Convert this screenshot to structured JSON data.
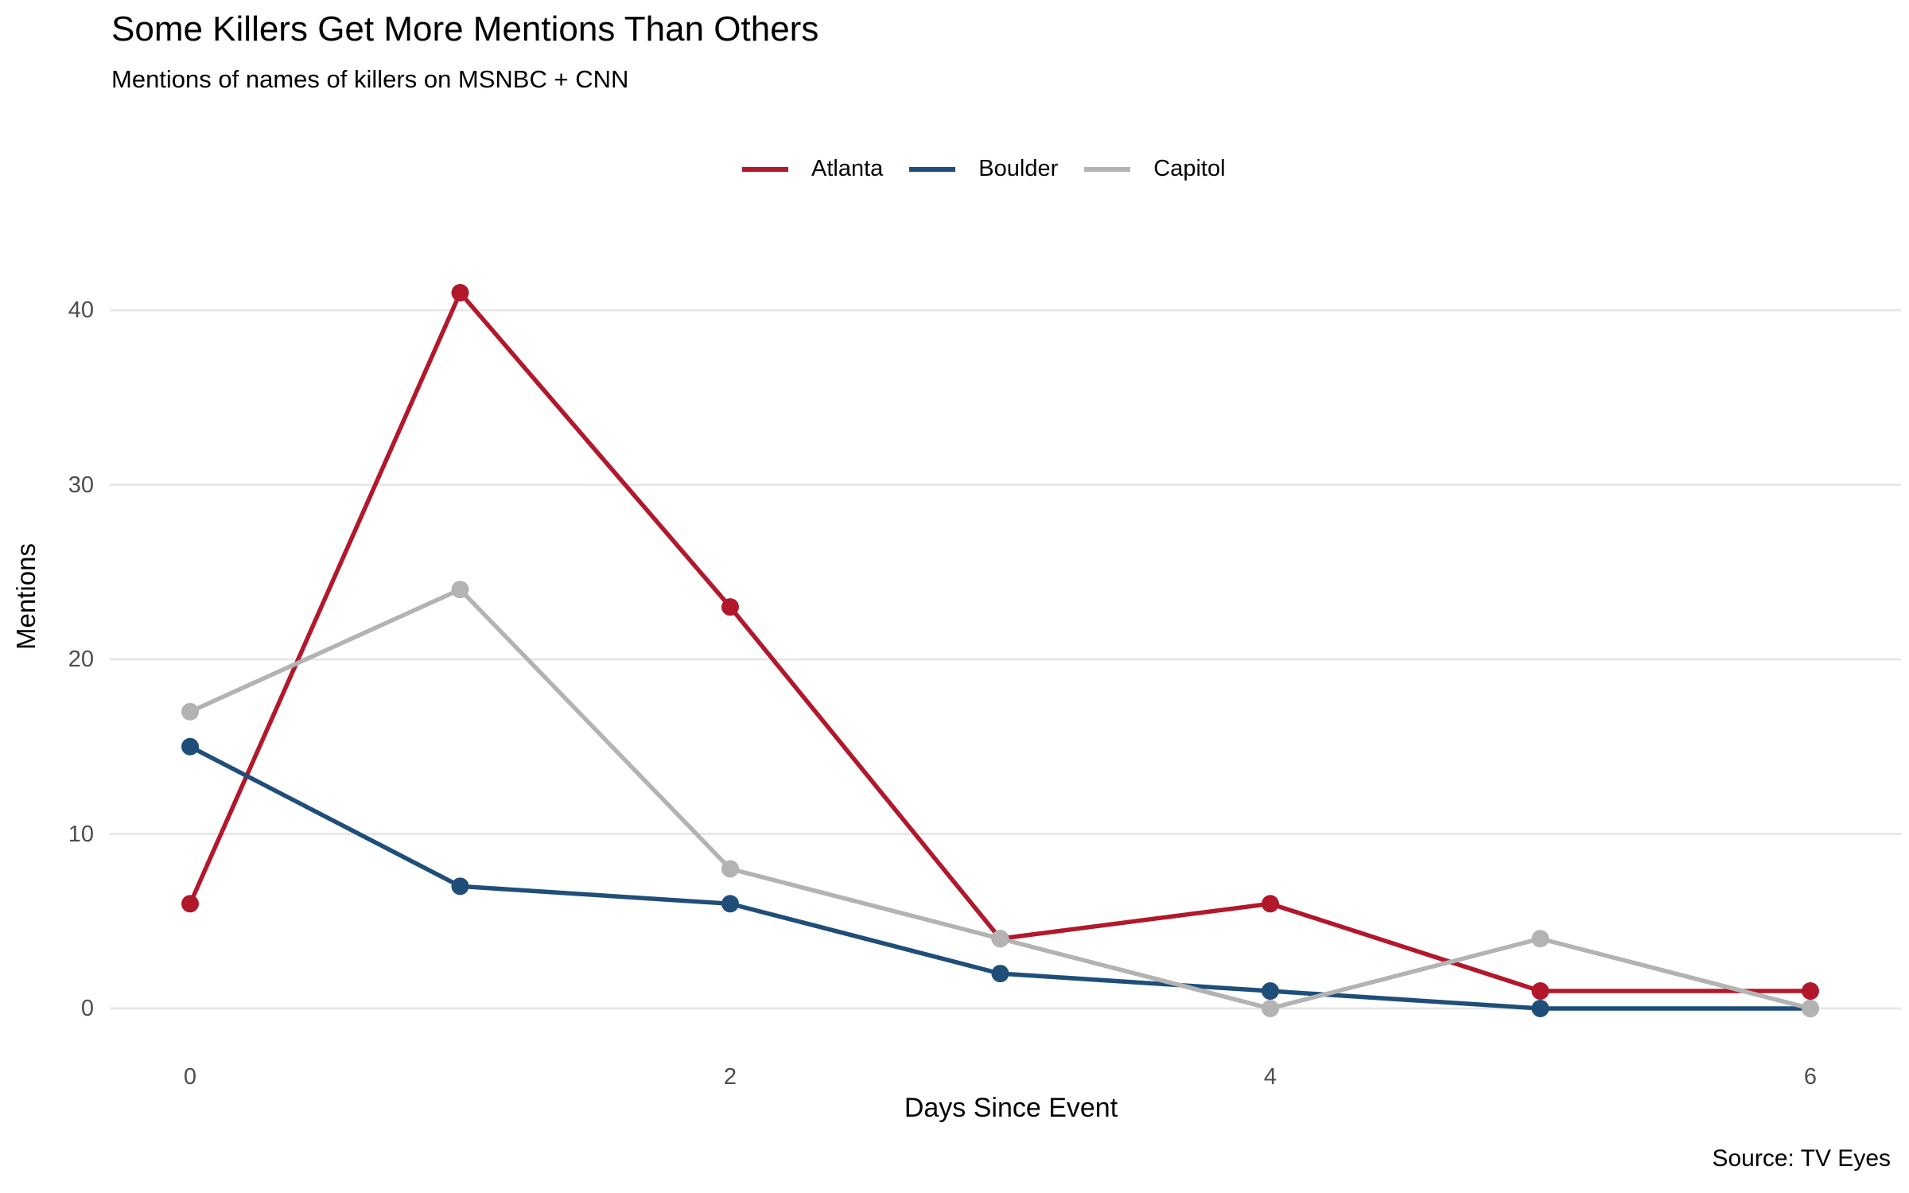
{
  "chart_data": {
    "type": "line",
    "title": "Some Killers Get More Mentions Than Others",
    "subtitle": "Mentions of names of killers on MSNBC + CNN",
    "xlabel": "Days Since Event",
    "ylabel": "Mentions",
    "source": "Source: TV Eyes",
    "x": [
      0,
      1,
      2,
      3,
      4,
      5,
      6
    ],
    "series": [
      {
        "name": "Atlanta",
        "color": "#B2182B",
        "values": [
          6,
          41,
          23,
          4,
          6,
          1,
          1
        ]
      },
      {
        "name": "Boulder",
        "color": "#1F4E79",
        "values": [
          15,
          7,
          6,
          2,
          1,
          0,
          0
        ]
      },
      {
        "name": "Capitol",
        "color": "#B3B3B3",
        "values": [
          17,
          24,
          8,
          4,
          0,
          4,
          0
        ]
      }
    ],
    "xticks": [
      0,
      2,
      4,
      6
    ],
    "yticks": [
      0,
      10,
      20,
      30,
      40
    ],
    "xlim": [
      0,
      6
    ],
    "ylim": [
      0,
      41
    ],
    "grid": "horizontal",
    "grid_color": "#E8E8E8",
    "legend_position": "top-center",
    "marker": "filled-circle"
  }
}
